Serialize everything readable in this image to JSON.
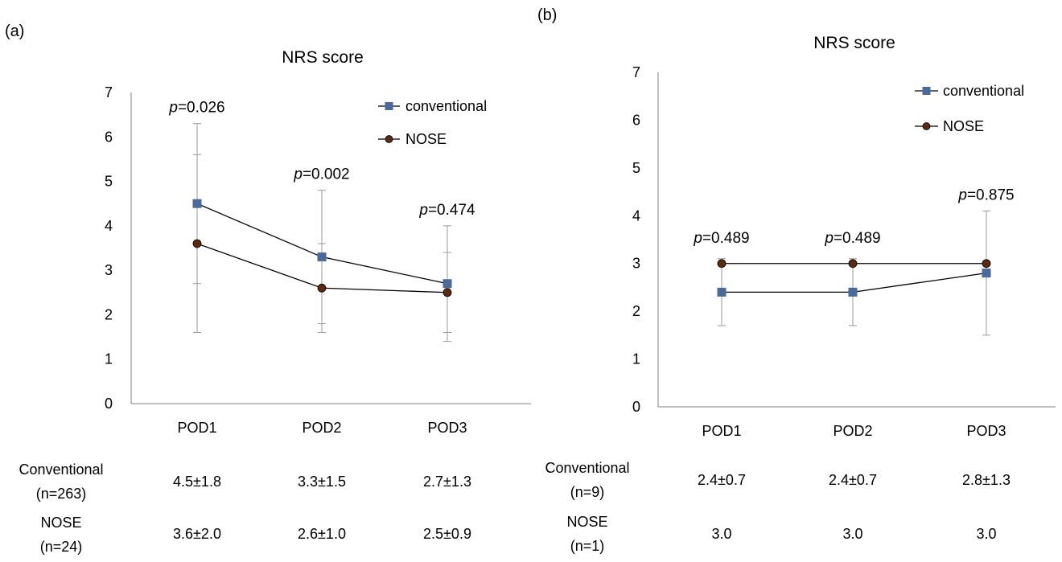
{
  "chart_data": [
    {
      "panel_label": "(a)",
      "type": "line",
      "title": "NRS score",
      "xlabel": "",
      "ylabel": "",
      "categories": [
        "POD1",
        "POD2",
        "POD3"
      ],
      "ylim": [
        0,
        7
      ],
      "yticks": [
        "0",
        "1",
        "2",
        "3",
        "4",
        "5",
        "6",
        "7"
      ],
      "grid": false,
      "legend_position": "top-right",
      "series": [
        {
          "name": "conventional",
          "marker": "square",
          "color": "#4a6a9b",
          "values": [
            4.5,
            3.3,
            2.7
          ],
          "sd": [
            1.8,
            1.5,
            1.3
          ]
        },
        {
          "name": "NOSE",
          "marker": "circle",
          "color": "#5c2a0e",
          "values": [
            3.6,
            2.6,
            2.5
          ],
          "sd": [
            2.0,
            1.0,
            0.9
          ]
        }
      ],
      "annotations": [
        {
          "category": "POD1",
          "prefix": "p",
          "text": "=0.026",
          "y": 6.3
        },
        {
          "category": "POD2",
          "prefix": "p",
          "text": "=0.002",
          "y": 4.8
        },
        {
          "category": "POD3",
          "prefix": "p",
          "text": "=0.474",
          "y": 4.0
        }
      ],
      "table": {
        "rows": [
          {
            "label_1": "Conventional",
            "label_2": "(n=263)",
            "cells": [
              "4.5±1.8",
              "3.3±1.5",
              "2.7±1.3"
            ]
          },
          {
            "label_1": "NOSE",
            "label_2": "(n=24)",
            "cells": [
              "3.6±2.0",
              "2.6±1.0",
              "2.5±0.9"
            ]
          }
        ]
      }
    },
    {
      "panel_label": "(b)",
      "type": "line",
      "title": "NRS score",
      "xlabel": "",
      "ylabel": "",
      "categories": [
        "POD1",
        "POD2",
        "POD3"
      ],
      "ylim": [
        0,
        7
      ],
      "yticks": [
        "0",
        "1",
        "2",
        "3",
        "4",
        "5",
        "6",
        "7"
      ],
      "grid": false,
      "legend_position": "top-right",
      "series": [
        {
          "name": "conventional",
          "marker": "square",
          "color": "#4a6a9b",
          "values": [
            2.4,
            2.4,
            2.8
          ],
          "sd": [
            0.7,
            0.7,
            1.3
          ]
        },
        {
          "name": "NOSE",
          "marker": "circle",
          "color": "#5c2a0e",
          "values": [
            3.0,
            3.0,
            3.0
          ],
          "sd": [
            0,
            0,
            0
          ]
        }
      ],
      "annotations": [
        {
          "category": "POD1",
          "prefix": "p",
          "text": "=0.489",
          "y": 3.2
        },
        {
          "category": "POD2",
          "prefix": "p",
          "text": "=0.489",
          "y": 3.2
        },
        {
          "category": "POD3",
          "prefix": "p",
          "text": "=0.875",
          "y": 4.1
        }
      ],
      "table": {
        "rows": [
          {
            "label_1": "Conventional",
            "label_2": "(n=9)",
            "cells": [
              "2.4±0.7",
              "2.4±0.7",
              "2.8±1.3"
            ]
          },
          {
            "label_1": "NOSE",
            "label_2": "(n=1)",
            "cells": [
              "3.0",
              "3.0",
              "3.0"
            ]
          }
        ]
      }
    }
  ]
}
